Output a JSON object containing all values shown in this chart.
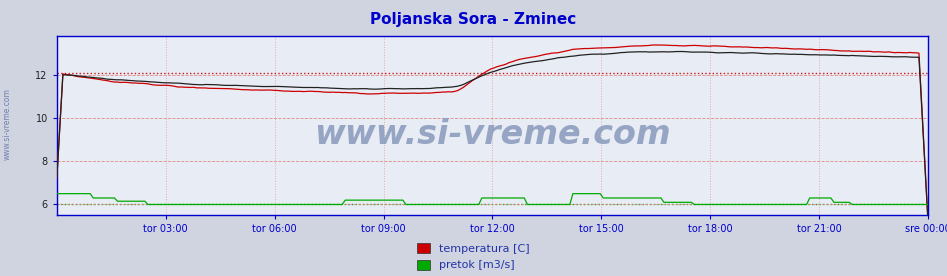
{
  "title": "Poljanska Sora - Zminec",
  "title_color": "#0000cc",
  "title_fontsize": 11,
  "bg_color": "#d0d4e0",
  "plot_bg_color": "#e8ecf4",
  "x_tick_labels": [
    "tor 03:00",
    "tor 06:00",
    "tor 09:00",
    "tor 12:00",
    "tor 15:00",
    "tor 18:00",
    "tor 21:00",
    "sre 00:00"
  ],
  "x_tick_positions": [
    0.125,
    0.25,
    0.375,
    0.5,
    0.625,
    0.75,
    0.875,
    1.0
  ],
  "ylim": [
    5.5,
    13.8
  ],
  "yticks": [
    6,
    8,
    10,
    12
  ],
  "grid_h_color": "#e08080",
  "grid_v_color": "#e8a0a0",
  "axis_color": "#0000cc",
  "watermark_text": "www.si-vreme.com",
  "watermark_color": "#8899bb",
  "watermark_fontsize": 24,
  "legend_labels": [
    "temperatura [C]",
    "pretok [m3/s]"
  ],
  "legend_colors": [
    "#cc0000",
    "#00aa00"
  ],
  "temp_color": "#cc0000",
  "height_color": "#222222",
  "flow_color": "#00aa00",
  "temp_avg": 12.1,
  "flow_avg": 6.0,
  "n_points": 288,
  "side_label": "www.si-vreme.com",
  "figsize": [
    9.47,
    2.76
  ],
  "dpi": 100
}
